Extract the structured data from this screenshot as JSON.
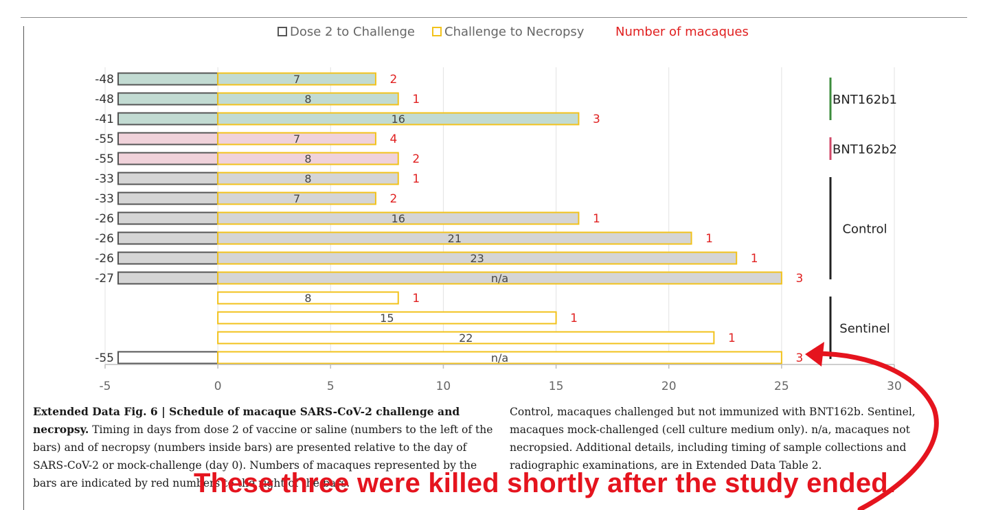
{
  "legend": {
    "dose": "Dose 2 to Challenge",
    "challenge": "Challenge to Necropsy",
    "count": "Number of macaques"
  },
  "colors": {
    "bnt_b1": "#c2dbd2",
    "bnt_b2": "#f0d2da",
    "control": "#d5d5d5",
    "sentinel": "#ffffff",
    "challenge_border": "#f2c21b",
    "dose_border": "#555555",
    "count_text": "#e02020",
    "bracket_b1": "#3c8c3c",
    "bracket_b2": "#d04868",
    "bracket_other": "#222222",
    "annotation": "#e5141e"
  },
  "chart_data": {
    "type": "bar",
    "orientation": "horizontal",
    "stacked": "diverging",
    "xlim": [
      -5,
      30
    ],
    "x_ticks": [
      "-5",
      "0",
      "5",
      "10",
      "15",
      "20",
      "25",
      "30"
    ],
    "grid": "vertical",
    "legend_position": "top",
    "series": [
      {
        "name": "Dose 2 to Challenge",
        "role": "dose"
      },
      {
        "name": "Challenge to Necropsy",
        "role": "challenge"
      },
      {
        "name": "Number of macaques",
        "role": "count"
      }
    ],
    "rows": [
      {
        "group": "bnt_b1",
        "dose": -48,
        "dose_label": "-48",
        "challenge": 7,
        "challenge_label": "7",
        "count": "2"
      },
      {
        "group": "bnt_b1",
        "dose": -48,
        "dose_label": "-48",
        "challenge": 8,
        "challenge_label": "8",
        "count": "1"
      },
      {
        "group": "bnt_b1",
        "dose": -41,
        "dose_label": "-41",
        "challenge": 16,
        "challenge_label": "16",
        "count": "3"
      },
      {
        "group": "bnt_b2",
        "dose": -55,
        "dose_label": "-55",
        "challenge": 7,
        "challenge_label": "7",
        "count": "4"
      },
      {
        "group": "bnt_b2",
        "dose": -55,
        "dose_label": "-55",
        "challenge": 8,
        "challenge_label": "8",
        "count": "2"
      },
      {
        "group": "control",
        "dose": -33,
        "dose_label": "-33",
        "challenge": 8,
        "challenge_label": "8",
        "count": "1"
      },
      {
        "group": "control",
        "dose": -33,
        "dose_label": "-33",
        "challenge": 7,
        "challenge_label": "7",
        "count": "2"
      },
      {
        "group": "control",
        "dose": -26,
        "dose_label": "-26",
        "challenge": 16,
        "challenge_label": "16",
        "count": "1"
      },
      {
        "group": "control",
        "dose": -26,
        "dose_label": "-26",
        "challenge": 21,
        "challenge_label": "21",
        "count": "1"
      },
      {
        "group": "control",
        "dose": -26,
        "dose_label": "-26",
        "challenge": 23,
        "challenge_label": "23",
        "count": "1"
      },
      {
        "group": "control",
        "dose": -27,
        "dose_label": "-27",
        "challenge": 25,
        "challenge_label": "n/a",
        "count": "3"
      },
      {
        "group": "sentinel",
        "dose": null,
        "dose_label": "",
        "challenge": 8,
        "challenge_label": "8",
        "count": "1"
      },
      {
        "group": "sentinel",
        "dose": null,
        "dose_label": "",
        "challenge": 15,
        "challenge_label": "15",
        "count": "1"
      },
      {
        "group": "sentinel",
        "dose": null,
        "dose_label": "",
        "challenge": 22,
        "challenge_label": "22",
        "count": "1"
      },
      {
        "group": "sentinel",
        "dose": -55,
        "dose_label": "-55",
        "challenge": 25,
        "challenge_label": "n/a",
        "count": "3"
      }
    ],
    "groups": [
      {
        "key": "bnt_b1",
        "label": "BNT162b1",
        "first_row": 0,
        "last_row": 2
      },
      {
        "key": "bnt_b2",
        "label": "BNT162b2",
        "first_row": 3,
        "last_row": 4
      },
      {
        "key": "control",
        "label": "Control",
        "first_row": 5,
        "last_row": 10
      },
      {
        "key": "sentinel",
        "label": "Sentinel",
        "first_row": 11,
        "last_row": 14
      }
    ]
  },
  "caption": {
    "title": "Extended Data Fig. 6 | Schedule of macaque SARS-CoV-2 challenge and necropsy.",
    "left_text": " Timing in days from dose 2 of vaccine or saline (numbers to the left of the bars) and of necropsy (numbers inside bars) are presented relative to the day of SARS-CoV-2 or mock-challenge (day 0). Numbers of macaques represented by the bars are indicated by red numbers to the right of the bars.",
    "right_text": "Control, macaques challenged but not immunized with BNT162b. Sentinel, macaques mock-challenged (cell culture medium only). n/a, macaques not necropsied. Additional details, including timing of sample collections and radiographic examinations, are in Extended Data Table 2."
  },
  "annotation": {
    "text": "These three were killed shortly after the study ended."
  }
}
